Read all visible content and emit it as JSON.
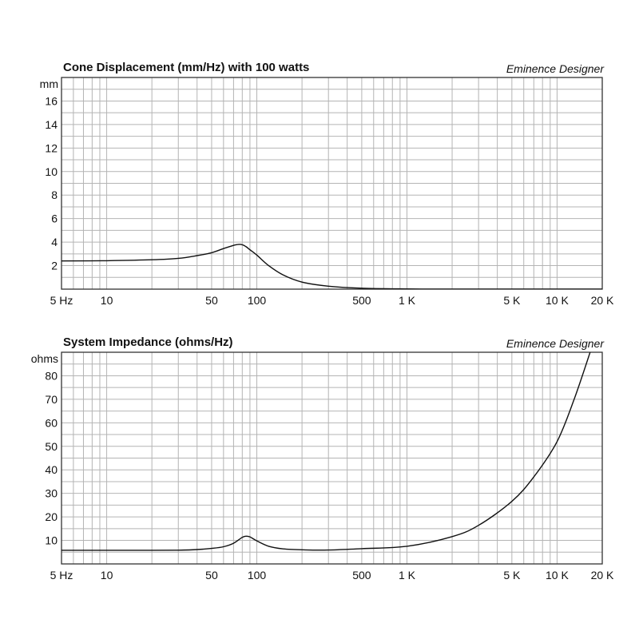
{
  "chart_data": [
    {
      "type": "line",
      "title": "Cone Displacement (mm/Hz) with 100 watts",
      "brand": "Eminence Designer",
      "ylabel": "mm",
      "xscale": "log",
      "xlim": [
        5,
        20000
      ],
      "ylim": [
        0,
        18
      ],
      "grid": true,
      "xtick_labels": [
        {
          "v": 5,
          "t": "5 Hz"
        },
        {
          "v": 10,
          "t": "10"
        },
        {
          "v": 50,
          "t": "50"
        },
        {
          "v": 100,
          "t": "100"
        },
        {
          "v": 500,
          "t": "500"
        },
        {
          "v": 1000,
          "t": "1 K"
        },
        {
          "v": 5000,
          "t": "5 K"
        },
        {
          "v": 10000,
          "t": "10 K"
        },
        {
          "v": 20000,
          "t": "20 K"
        }
      ],
      "ytick_labels": [
        {
          "v": 2,
          "t": "2"
        },
        {
          "v": 4,
          "t": "4"
        },
        {
          "v": 6,
          "t": "6"
        },
        {
          "v": 8,
          "t": "8"
        },
        {
          "v": 10,
          "t": "10"
        },
        {
          "v": 12,
          "t": "12"
        },
        {
          "v": 14,
          "t": "14"
        },
        {
          "v": 16,
          "t": "16"
        }
      ],
      "ygrid_step": 1,
      "series": [
        {
          "name": "Displacement",
          "x": [
            5,
            10,
            20,
            30,
            40,
            50,
            60,
            70,
            75,
            80,
            85,
            90,
            100,
            120,
            150,
            200,
            300,
            500,
            1000,
            2000,
            20000
          ],
          "y": [
            2.4,
            2.42,
            2.5,
            2.62,
            2.85,
            3.1,
            3.45,
            3.72,
            3.8,
            3.78,
            3.6,
            3.35,
            2.9,
            2.0,
            1.2,
            0.6,
            0.25,
            0.08,
            0.02,
            0.0,
            0.0
          ]
        }
      ]
    },
    {
      "type": "line",
      "title": "System Impedance (ohms/Hz)",
      "brand": "Eminence Designer",
      "ylabel": "ohms",
      "xscale": "log",
      "xlim": [
        5,
        20000
      ],
      "ylim": [
        0,
        90
      ],
      "grid": true,
      "xtick_labels": [
        {
          "v": 5,
          "t": "5 Hz"
        },
        {
          "v": 10,
          "t": "10"
        },
        {
          "v": 50,
          "t": "50"
        },
        {
          "v": 100,
          "t": "100"
        },
        {
          "v": 500,
          "t": "500"
        },
        {
          "v": 1000,
          "t": "1 K"
        },
        {
          "v": 5000,
          "t": "5 K"
        },
        {
          "v": 10000,
          "t": "10 K"
        },
        {
          "v": 20000,
          "t": "20 K"
        }
      ],
      "ytick_labels": [
        {
          "v": 10,
          "t": "10"
        },
        {
          "v": 20,
          "t": "20"
        },
        {
          "v": 30,
          "t": "30"
        },
        {
          "v": 40,
          "t": "40"
        },
        {
          "v": 50,
          "t": "50"
        },
        {
          "v": 60,
          "t": "60"
        },
        {
          "v": 70,
          "t": "70"
        },
        {
          "v": 80,
          "t": "80"
        }
      ],
      "ygrid_step": 5,
      "series": [
        {
          "name": "Impedance",
          "x": [
            5,
            10,
            20,
            30,
            40,
            50,
            60,
            70,
            80,
            85,
            90,
            100,
            120,
            150,
            200,
            300,
            500,
            1000,
            2000,
            3000,
            5000,
            7000,
            10000,
            13000,
            16600
          ],
          "y": [
            5.8,
            5.8,
            5.8,
            5.85,
            6.1,
            6.6,
            7.3,
            8.8,
            11.3,
            11.8,
            11.5,
            9.8,
            7.5,
            6.4,
            6.0,
            5.9,
            6.5,
            7.5,
            11.6,
            16.4,
            26.6,
            37,
            52,
            70,
            90
          ]
        }
      ]
    }
  ]
}
